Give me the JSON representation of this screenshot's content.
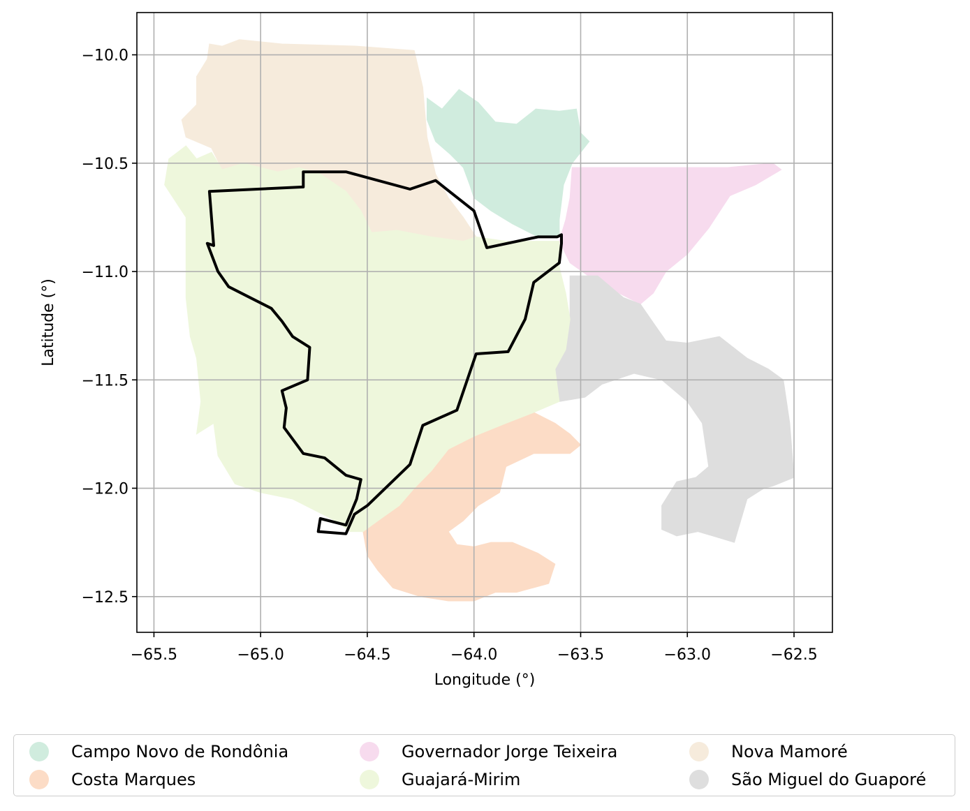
{
  "chart_data": {
    "type": "map",
    "xlabel": "Longitude (°)",
    "ylabel": "Latitude (°)",
    "xlim": [
      -65.58,
      -62.32
    ],
    "ylim": [
      -12.665,
      -9.805
    ],
    "xticks": [
      -65.5,
      -65.0,
      -64.5,
      -64.0,
      -63.5,
      -63.0,
      -62.5
    ],
    "xtick_labels": [
      "−65.5",
      "−65.0",
      "−64.5",
      "−64.0",
      "−63.5",
      "−63.0",
      "−62.5"
    ],
    "yticks": [
      -10.0,
      -10.5,
      -11.0,
      -11.5,
      -12.0,
      -12.5
    ],
    "ytick_labels": [
      "−10.0",
      "−10.5",
      "−11.0",
      "−11.5",
      "−12.0",
      "−12.5"
    ],
    "grid": true,
    "legend_position": "below",
    "regions": [
      {
        "name": "Nova Mamoré",
        "color": "#f6ebdc",
        "polygon": [
          [
            -65.24,
            -9.95
          ],
          [
            -65.18,
            -9.96
          ],
          [
            -65.1,
            -9.93
          ],
          [
            -64.9,
            -9.95
          ],
          [
            -64.55,
            -9.96
          ],
          [
            -64.28,
            -9.98
          ],
          [
            -64.24,
            -10.15
          ],
          [
            -64.22,
            -10.38
          ],
          [
            -64.18,
            -10.55
          ],
          [
            -64.12,
            -10.66
          ],
          [
            -64.05,
            -10.75
          ],
          [
            -63.99,
            -10.84
          ],
          [
            -64.05,
            -10.86
          ],
          [
            -64.2,
            -10.84
          ],
          [
            -64.36,
            -10.81
          ],
          [
            -64.48,
            -10.82
          ],
          [
            -64.53,
            -10.72
          ],
          [
            -64.6,
            -10.63
          ],
          [
            -64.72,
            -10.55
          ],
          [
            -64.82,
            -10.52
          ],
          [
            -64.92,
            -10.54
          ],
          [
            -65.08,
            -10.5
          ],
          [
            -65.18,
            -10.53
          ],
          [
            -65.23,
            -10.43
          ],
          [
            -65.35,
            -10.38
          ],
          [
            -65.37,
            -10.3
          ],
          [
            -65.3,
            -10.23
          ],
          [
            -65.3,
            -10.1
          ],
          [
            -65.25,
            -10.02
          ]
        ]
      },
      {
        "name": "Campo Novo de Rondônia",
        "color": "#d0ecde",
        "polygon": [
          [
            -64.22,
            -10.2
          ],
          [
            -64.15,
            -10.25
          ],
          [
            -64.07,
            -10.16
          ],
          [
            -63.98,
            -10.22
          ],
          [
            -63.9,
            -10.31
          ],
          [
            -63.8,
            -10.32
          ],
          [
            -63.71,
            -10.25
          ],
          [
            -63.6,
            -10.26
          ],
          [
            -63.52,
            -10.25
          ],
          [
            -63.5,
            -10.36
          ],
          [
            -63.46,
            -10.4
          ],
          [
            -63.5,
            -10.45
          ],
          [
            -63.54,
            -10.5
          ],
          [
            -63.58,
            -10.6
          ],
          [
            -63.6,
            -10.76
          ],
          [
            -63.6,
            -10.84
          ],
          [
            -63.7,
            -10.84
          ],
          [
            -63.82,
            -10.78
          ],
          [
            -63.92,
            -10.72
          ],
          [
            -64.0,
            -10.66
          ],
          [
            -64.02,
            -10.6
          ],
          [
            -64.05,
            -10.52
          ],
          [
            -64.11,
            -10.46
          ],
          [
            -64.18,
            -10.4
          ],
          [
            -64.22,
            -10.3
          ]
        ]
      },
      {
        "name": "Governador Jorge Teixeira",
        "color": "#f7dbee",
        "polygon": [
          [
            -63.54,
            -10.52
          ],
          [
            -62.81,
            -10.52
          ],
          [
            -62.6,
            -10.5
          ],
          [
            -62.56,
            -10.53
          ],
          [
            -62.68,
            -10.6
          ],
          [
            -62.8,
            -10.65
          ],
          [
            -62.9,
            -10.8
          ],
          [
            -63.0,
            -10.92
          ],
          [
            -63.1,
            -11.0
          ],
          [
            -63.16,
            -11.1
          ],
          [
            -63.22,
            -11.15
          ],
          [
            -63.32,
            -11.1
          ],
          [
            -63.45,
            -11.03
          ],
          [
            -63.55,
            -10.96
          ],
          [
            -63.6,
            -10.86
          ],
          [
            -63.57,
            -10.76
          ],
          [
            -63.55,
            -10.66
          ]
        ]
      },
      {
        "name": "São Miguel do Guaporé",
        "color": "#dedede",
        "polygon": [
          [
            -63.55,
            -11.02
          ],
          [
            -63.42,
            -11.02
          ],
          [
            -63.3,
            -11.12
          ],
          [
            -63.22,
            -11.15
          ],
          [
            -63.15,
            -11.25
          ],
          [
            -63.1,
            -11.32
          ],
          [
            -63.0,
            -11.33
          ],
          [
            -62.85,
            -11.3
          ],
          [
            -62.72,
            -11.4
          ],
          [
            -62.62,
            -11.45
          ],
          [
            -62.55,
            -11.5
          ],
          [
            -62.52,
            -11.7
          ],
          [
            -62.5,
            -11.95
          ],
          [
            -62.6,
            -11.99
          ],
          [
            -62.64,
            -12.0
          ],
          [
            -62.72,
            -12.05
          ],
          [
            -62.78,
            -12.25
          ],
          [
            -62.95,
            -12.2
          ],
          [
            -63.05,
            -12.22
          ],
          [
            -63.12,
            -12.19
          ],
          [
            -63.12,
            -12.08
          ],
          [
            -63.05,
            -11.97
          ],
          [
            -62.96,
            -11.95
          ],
          [
            -62.9,
            -11.9
          ],
          [
            -62.93,
            -11.7
          ],
          [
            -63.0,
            -11.6
          ],
          [
            -63.12,
            -11.5
          ],
          [
            -63.25,
            -11.47
          ],
          [
            -63.4,
            -11.52
          ],
          [
            -63.48,
            -11.58
          ],
          [
            -63.6,
            -11.6
          ],
          [
            -63.62,
            -11.45
          ],
          [
            -63.57,
            -11.36
          ],
          [
            -63.55,
            -11.2
          ]
        ]
      },
      {
        "name": "Costa Marques",
        "color": "#fcdcc6",
        "polygon": [
          [
            -63.72,
            -11.65
          ],
          [
            -63.8,
            -11.67
          ],
          [
            -63.9,
            -11.7
          ],
          [
            -63.97,
            -11.75
          ],
          [
            -64.08,
            -11.8
          ],
          [
            -64.15,
            -11.78
          ],
          [
            -64.22,
            -11.84
          ],
          [
            -64.3,
            -11.96
          ],
          [
            -64.38,
            -12.05
          ],
          [
            -64.45,
            -12.12
          ],
          [
            -64.52,
            -12.2
          ],
          [
            -64.5,
            -12.31
          ],
          [
            -64.45,
            -12.38
          ],
          [
            -64.38,
            -12.46
          ],
          [
            -64.25,
            -12.5
          ],
          [
            -64.12,
            -12.52
          ],
          [
            -64.0,
            -12.52
          ],
          [
            -63.9,
            -12.48
          ],
          [
            -63.8,
            -12.48
          ],
          [
            -63.65,
            -12.44
          ],
          [
            -63.62,
            -12.35
          ],
          [
            -63.7,
            -12.3
          ],
          [
            -63.82,
            -12.25
          ],
          [
            -63.92,
            -12.25
          ],
          [
            -64.0,
            -12.27
          ],
          [
            -64.08,
            -12.26
          ],
          [
            -64.12,
            -12.2
          ],
          [
            -64.05,
            -12.15
          ],
          [
            -63.98,
            -12.08
          ],
          [
            -63.88,
            -12.02
          ],
          [
            -63.85,
            -11.9
          ],
          [
            -63.72,
            -11.84
          ],
          [
            -63.55,
            -11.84
          ],
          [
            -63.5,
            -11.8
          ],
          [
            -63.55,
            -11.75
          ],
          [
            -63.62,
            -11.7
          ]
        ]
      },
      {
        "name": "Guajará-Mirim",
        "color": "#eef7dc",
        "polygon": [
          [
            -65.18,
            -10.53
          ],
          [
            -65.08,
            -10.5
          ],
          [
            -64.92,
            -10.54
          ],
          [
            -64.82,
            -10.52
          ],
          [
            -64.72,
            -10.55
          ],
          [
            -64.6,
            -10.63
          ],
          [
            -64.53,
            -10.72
          ],
          [
            -64.48,
            -10.82
          ],
          [
            -64.36,
            -10.81
          ],
          [
            -64.2,
            -10.84
          ],
          [
            -64.05,
            -10.86
          ],
          [
            -63.99,
            -10.84
          ],
          [
            -63.85,
            -10.86
          ],
          [
            -63.7,
            -10.86
          ],
          [
            -63.6,
            -10.86
          ],
          [
            -63.6,
            -10.98
          ],
          [
            -63.57,
            -11.1
          ],
          [
            -63.55,
            -11.22
          ],
          [
            -63.57,
            -11.36
          ],
          [
            -63.62,
            -11.45
          ],
          [
            -63.6,
            -11.6
          ],
          [
            -63.72,
            -11.65
          ],
          [
            -63.85,
            -11.7
          ],
          [
            -64.0,
            -11.76
          ],
          [
            -64.12,
            -11.82
          ],
          [
            -64.2,
            -11.92
          ],
          [
            -64.28,
            -12.0
          ],
          [
            -64.35,
            -12.08
          ],
          [
            -64.45,
            -12.15
          ],
          [
            -64.52,
            -12.2
          ],
          [
            -64.58,
            -12.2
          ],
          [
            -64.65,
            -12.15
          ],
          [
            -64.75,
            -12.1
          ],
          [
            -64.85,
            -12.05
          ],
          [
            -65.0,
            -12.02
          ],
          [
            -65.12,
            -11.98
          ],
          [
            -65.2,
            -11.85
          ],
          [
            -65.22,
            -11.7
          ],
          [
            -65.3,
            -11.75
          ],
          [
            -65.28,
            -11.6
          ],
          [
            -65.3,
            -11.4
          ],
          [
            -65.33,
            -11.3
          ],
          [
            -65.35,
            -11.12
          ],
          [
            -65.35,
            -10.95
          ],
          [
            -65.35,
            -10.75
          ],
          [
            -65.45,
            -10.6
          ],
          [
            -65.43,
            -10.48
          ],
          [
            -65.35,
            -10.42
          ],
          [
            -65.3,
            -10.48
          ],
          [
            -65.23,
            -10.45
          ]
        ]
      }
    ],
    "highlight_outline": {
      "color": "#000000",
      "polygon": [
        [
          -65.24,
          -10.63
        ],
        [
          -64.8,
          -10.61
        ],
        [
          -64.8,
          -10.54
        ],
        [
          -64.6,
          -10.54
        ],
        [
          -64.3,
          -10.62
        ],
        [
          -64.18,
          -10.58
        ],
        [
          -64.0,
          -10.72
        ],
        [
          -63.94,
          -10.89
        ],
        [
          -63.7,
          -10.84
        ],
        [
          -63.61,
          -10.84
        ],
        [
          -63.59,
          -10.83
        ],
        [
          -63.59,
          -10.87
        ],
        [
          -63.6,
          -10.96
        ],
        [
          -63.72,
          -11.05
        ],
        [
          -63.76,
          -11.22
        ],
        [
          -63.84,
          -11.37
        ],
        [
          -63.99,
          -11.38
        ],
        [
          -64.08,
          -11.64
        ],
        [
          -64.24,
          -11.71
        ],
        [
          -64.3,
          -11.89
        ],
        [
          -64.5,
          -12.08
        ],
        [
          -64.56,
          -12.12
        ],
        [
          -64.6,
          -12.21
        ],
        [
          -64.73,
          -12.2
        ],
        [
          -64.72,
          -12.14
        ],
        [
          -64.6,
          -12.17
        ],
        [
          -64.55,
          -12.05
        ],
        [
          -64.53,
          -11.96
        ],
        [
          -64.6,
          -11.94
        ],
        [
          -64.7,
          -11.86
        ],
        [
          -64.8,
          -11.84
        ],
        [
          -64.89,
          -11.72
        ],
        [
          -64.88,
          -11.63
        ],
        [
          -64.9,
          -11.55
        ],
        [
          -64.78,
          -11.5
        ],
        [
          -64.77,
          -11.35
        ],
        [
          -64.85,
          -11.3
        ],
        [
          -64.9,
          -11.23
        ],
        [
          -64.95,
          -11.17
        ],
        [
          -65.05,
          -11.12
        ],
        [
          -65.15,
          -11.07
        ],
        [
          -65.2,
          -11.0
        ],
        [
          -65.25,
          -10.87
        ],
        [
          -65.22,
          -10.88
        ]
      ]
    }
  },
  "legend": {
    "items": [
      {
        "label": "Campo Novo de Rondônia",
        "color": "#d0ecde"
      },
      {
        "label": "Costa Marques",
        "color": "#fcdcc6"
      },
      {
        "label": "Governador Jorge Teixeira",
        "color": "#f7dbee"
      },
      {
        "label": "Guajará-Mirim",
        "color": "#eef7dc"
      },
      {
        "label": "Nova Mamoré",
        "color": "#f6ebdc"
      },
      {
        "label": "São Miguel do Guaporé",
        "color": "#dedede"
      }
    ]
  }
}
